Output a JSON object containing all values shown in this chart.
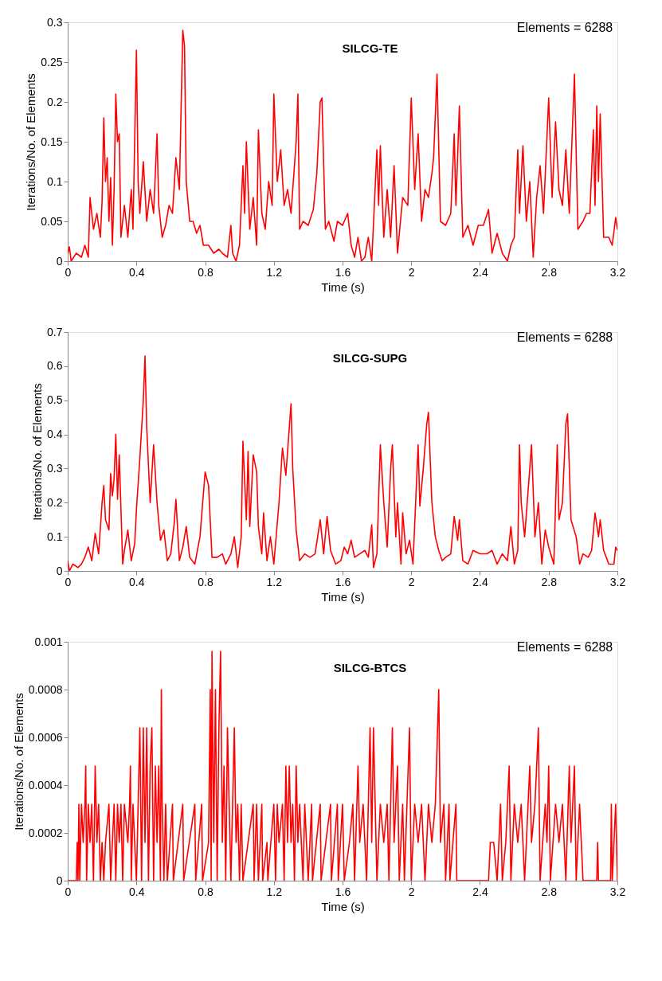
{
  "chart_data": [
    {
      "type": "line",
      "title": "SILCG-TE",
      "xlabel": "Time (s)",
      "ylabel": "Iterations/No. of Elements",
      "annotations": [
        "Elements = 6288"
      ],
      "xlim": [
        0,
        3.2
      ],
      "xticks": [
        0,
        0.4,
        0.8,
        1.2,
        1.6,
        2,
        2.4,
        2.8,
        3.2
      ],
      "ylim": [
        0,
        0.3
      ],
      "yticks": [
        0,
        0.05,
        0.1,
        0.15,
        0.2,
        0.25,
        0.3
      ],
      "grid": false,
      "marker": "none",
      "line_style": "solid",
      "series": [
        {
          "color": "#ff0000",
          "x": [
            0,
            0.01,
            0.02,
            0.05,
            0.08,
            0.1,
            0.12,
            0.13,
            0.15,
            0.17,
            0.19,
            0.2,
            0.21,
            0.22,
            0.23,
            0.24,
            0.25,
            0.26,
            0.27,
            0.28,
            0.29,
            0.3,
            0.31,
            0.33,
            0.35,
            0.37,
            0.38,
            0.4,
            0.41,
            0.42,
            0.44,
            0.46,
            0.48,
            0.5,
            0.52,
            0.53,
            0.55,
            0.57,
            0.59,
            0.61,
            0.63,
            0.65,
            0.67,
            0.68,
            0.69,
            0.71,
            0.73,
            0.75,
            0.77,
            0.79,
            0.82,
            0.85,
            0.88,
            0.9,
            0.93,
            0.95,
            0.96,
            0.98,
            1.0,
            1.02,
            1.03,
            1.04,
            1.06,
            1.08,
            1.1,
            1.11,
            1.13,
            1.15,
            1.17,
            1.19,
            1.2,
            1.22,
            1.24,
            1.26,
            1.28,
            1.3,
            1.33,
            1.34,
            1.35,
            1.37,
            1.4,
            1.43,
            1.45,
            1.47,
            1.48,
            1.5,
            1.52,
            1.55,
            1.57,
            1.6,
            1.63,
            1.65,
            1.67,
            1.69,
            1.71,
            1.73,
            1.75,
            1.77,
            1.8,
            1.81,
            1.82,
            1.84,
            1.86,
            1.88,
            1.9,
            1.92,
            1.95,
            1.98,
            2.0,
            2.02,
            2.04,
            2.06,
            2.08,
            2.1,
            2.12,
            2.13,
            2.15,
            2.17,
            2.2,
            2.23,
            2.25,
            2.26,
            2.28,
            2.3,
            2.33,
            2.36,
            2.39,
            2.42,
            2.45,
            2.47,
            2.5,
            2.53,
            2.56,
            2.58,
            2.6,
            2.62,
            2.63,
            2.65,
            2.67,
            2.69,
            2.71,
            2.73,
            2.75,
            2.77,
            2.8,
            2.82,
            2.84,
            2.86,
            2.88,
            2.9,
            2.92,
            2.95,
            2.97,
            3.0,
            3.02,
            3.04,
            3.06,
            3.07,
            3.08,
            3.09,
            3.1,
            3.12,
            3.15,
            3.17,
            3.19,
            3.2
          ],
          "values": [
            0.01,
            0.018,
            0.0,
            0.01,
            0.005,
            0.02,
            0.005,
            0.08,
            0.04,
            0.06,
            0.03,
            0.075,
            0.18,
            0.1,
            0.13,
            0.05,
            0.105,
            0.02,
            0.09,
            0.21,
            0.15,
            0.16,
            0.03,
            0.07,
            0.03,
            0.09,
            0.04,
            0.265,
            0.1,
            0.06,
            0.125,
            0.05,
            0.09,
            0.06,
            0.16,
            0.07,
            0.03,
            0.045,
            0.07,
            0.06,
            0.13,
            0.09,
            0.29,
            0.27,
            0.1,
            0.05,
            0.05,
            0.035,
            0.045,
            0.02,
            0.02,
            0.01,
            0.015,
            0.01,
            0.005,
            0.045,
            0.01,
            0.0,
            0.02,
            0.12,
            0.06,
            0.15,
            0.04,
            0.08,
            0.02,
            0.165,
            0.06,
            0.04,
            0.1,
            0.07,
            0.21,
            0.1,
            0.14,
            0.07,
            0.09,
            0.06,
            0.15,
            0.21,
            0.04,
            0.05,
            0.045,
            0.065,
            0.11,
            0.2,
            0.205,
            0.04,
            0.05,
            0.025,
            0.05,
            0.045,
            0.06,
            0.02,
            0.005,
            0.03,
            0.0,
            0.005,
            0.03,
            0.0,
            0.14,
            0.07,
            0.145,
            0.03,
            0.09,
            0.03,
            0.12,
            0.01,
            0.08,
            0.07,
            0.205,
            0.09,
            0.16,
            0.05,
            0.09,
            0.08,
            0.11,
            0.13,
            0.235,
            0.05,
            0.045,
            0.06,
            0.16,
            0.07,
            0.195,
            0.03,
            0.045,
            0.02,
            0.045,
            0.045,
            0.065,
            0.01,
            0.035,
            0.01,
            0.0,
            0.02,
            0.03,
            0.14,
            0.06,
            0.145,
            0.05,
            0.1,
            0.005,
            0.08,
            0.12,
            0.06,
            0.205,
            0.08,
            0.175,
            0.09,
            0.07,
            0.14,
            0.06,
            0.235,
            0.04,
            0.05,
            0.06,
            0.06,
            0.165,
            0.07,
            0.195,
            0.1,
            0.185,
            0.03,
            0.03,
            0.02,
            0.055,
            0.04
          ]
        }
      ]
    },
    {
      "type": "line",
      "title": "SILCG-SUPG",
      "xlabel": "Time (s)",
      "ylabel": "Iterations/No. of Elements",
      "annotations": [
        "Elements = 6288"
      ],
      "xlim": [
        0,
        3.2
      ],
      "xticks": [
        0,
        0.4,
        0.8,
        1.2,
        1.6,
        2,
        2.4,
        2.8,
        3.2
      ],
      "ylim": [
        0,
        0.7
      ],
      "yticks": [
        0,
        0.1,
        0.2,
        0.3,
        0.4,
        0.5,
        0.6,
        0.7
      ],
      "grid": false,
      "marker": "none",
      "line_style": "solid",
      "series": [
        {
          "color": "#ff0000",
          "x": [
            0,
            0.01,
            0.03,
            0.06,
            0.08,
            0.1,
            0.12,
            0.14,
            0.16,
            0.18,
            0.2,
            0.21,
            0.22,
            0.24,
            0.25,
            0.26,
            0.27,
            0.28,
            0.29,
            0.3,
            0.32,
            0.33,
            0.35,
            0.37,
            0.39,
            0.4,
            0.42,
            0.44,
            0.45,
            0.46,
            0.48,
            0.5,
            0.52,
            0.54,
            0.56,
            0.58,
            0.6,
            0.62,
            0.63,
            0.65,
            0.67,
            0.69,
            0.71,
            0.74,
            0.77,
            0.8,
            0.82,
            0.84,
            0.87,
            0.9,
            0.92,
            0.95,
            0.97,
            0.99,
            1.01,
            1.02,
            1.04,
            1.05,
            1.06,
            1.08,
            1.1,
            1.11,
            1.13,
            1.14,
            1.16,
            1.18,
            1.2,
            1.23,
            1.25,
            1.27,
            1.3,
            1.31,
            1.33,
            1.35,
            1.38,
            1.41,
            1.44,
            1.47,
            1.49,
            1.51,
            1.53,
            1.56,
            1.59,
            1.61,
            1.63,
            1.65,
            1.67,
            1.7,
            1.73,
            1.75,
            1.77,
            1.78,
            1.8,
            1.82,
            1.84,
            1.86,
            1.88,
            1.89,
            1.91,
            1.92,
            1.94,
            1.95,
            1.97,
            1.99,
            2.01,
            2.04,
            2.05,
            2.07,
            2.09,
            2.1,
            2.12,
            2.14,
            2.16,
            2.18,
            2.2,
            2.23,
            2.25,
            2.27,
            2.28,
            2.3,
            2.33,
            2.36,
            2.4,
            2.44,
            2.47,
            2.5,
            2.53,
            2.56,
            2.58,
            2.6,
            2.62,
            2.63,
            2.64,
            2.66,
            2.69,
            2.7,
            2.72,
            2.74,
            2.76,
            2.78,
            2.8,
            2.83,
            2.85,
            2.86,
            2.88,
            2.9,
            2.91,
            2.93,
            2.96,
            2.98,
            3.0,
            3.03,
            3.05,
            3.07,
            3.09,
            3.1,
            3.12,
            3.15,
            3.18,
            3.19,
            3.2
          ],
          "values": [
            0.03,
            0.0,
            0.02,
            0.01,
            0.02,
            0.04,
            0.07,
            0.03,
            0.11,
            0.05,
            0.2,
            0.25,
            0.15,
            0.12,
            0.285,
            0.22,
            0.27,
            0.4,
            0.21,
            0.34,
            0.02,
            0.06,
            0.12,
            0.03,
            0.08,
            0.18,
            0.33,
            0.5,
            0.63,
            0.42,
            0.2,
            0.37,
            0.2,
            0.09,
            0.12,
            0.03,
            0.05,
            0.14,
            0.21,
            0.03,
            0.07,
            0.13,
            0.04,
            0.02,
            0.1,
            0.29,
            0.25,
            0.04,
            0.04,
            0.05,
            0.02,
            0.05,
            0.1,
            0.01,
            0.1,
            0.38,
            0.15,
            0.35,
            0.13,
            0.34,
            0.29,
            0.13,
            0.05,
            0.17,
            0.03,
            0.1,
            0.02,
            0.2,
            0.36,
            0.28,
            0.49,
            0.3,
            0.12,
            0.03,
            0.05,
            0.04,
            0.05,
            0.15,
            0.05,
            0.16,
            0.06,
            0.02,
            0.03,
            0.07,
            0.05,
            0.09,
            0.04,
            0.05,
            0.06,
            0.04,
            0.135,
            0.01,
            0.05,
            0.37,
            0.2,
            0.07,
            0.3,
            0.37,
            0.1,
            0.2,
            0.02,
            0.17,
            0.05,
            0.09,
            0.02,
            0.37,
            0.19,
            0.3,
            0.43,
            0.465,
            0.2,
            0.1,
            0.06,
            0.03,
            0.04,
            0.05,
            0.16,
            0.09,
            0.15,
            0.03,
            0.02,
            0.06,
            0.05,
            0.05,
            0.06,
            0.02,
            0.05,
            0.03,
            0.13,
            0.02,
            0.06,
            0.37,
            0.2,
            0.1,
            0.3,
            0.37,
            0.1,
            0.2,
            0.02,
            0.12,
            0.07,
            0.02,
            0.37,
            0.15,
            0.2,
            0.43,
            0.46,
            0.15,
            0.1,
            0.02,
            0.05,
            0.04,
            0.06,
            0.17,
            0.1,
            0.15,
            0.06,
            0.02,
            0.02,
            0.07,
            0.06
          ]
        }
      ]
    },
    {
      "type": "line",
      "title": "SILCG-BTCS",
      "xlabel": "Time (s)",
      "ylabel": "Iterations/No. of Elements",
      "annotations": [
        "Elements = 6288"
      ],
      "xlim": [
        0,
        3.2
      ],
      "xticks": [
        0,
        0.4,
        0.8,
        1.2,
        1.6,
        2,
        2.4,
        2.8,
        3.2
      ],
      "ylim": [
        0,
        0.001
      ],
      "yticks": [
        0,
        0.0002,
        0.0004,
        0.0006,
        0.0008,
        0.001
      ],
      "grid": false,
      "marker": "none",
      "line_style": "solid",
      "series": [
        {
          "color": "#ff0000",
          "x": [
            0,
            0.05,
            0.055,
            0.06,
            0.065,
            0.07,
            0.08,
            0.09,
            0.1,
            0.105,
            0.11,
            0.12,
            0.13,
            0.14,
            0.15,
            0.16,
            0.17,
            0.18,
            0.19,
            0.2,
            0.21,
            0.22,
            0.24,
            0.25,
            0.27,
            0.28,
            0.29,
            0.3,
            0.31,
            0.32,
            0.33,
            0.35,
            0.36,
            0.365,
            0.37,
            0.38,
            0.39,
            0.4,
            0.42,
            0.43,
            0.44,
            0.45,
            0.46,
            0.47,
            0.48,
            0.49,
            0.5,
            0.51,
            0.52,
            0.53,
            0.54,
            0.545,
            0.55,
            0.56,
            0.57,
            0.58,
            0.61,
            0.615,
            0.67,
            0.675,
            0.74,
            0.745,
            0.78,
            0.785,
            0.82,
            0.83,
            0.835,
            0.84,
            0.85,
            0.86,
            0.87,
            0.88,
            0.89,
            0.9,
            0.91,
            0.92,
            0.93,
            0.94,
            0.95,
            0.96,
            0.97,
            0.98,
            0.99,
            1.0,
            1.01,
            1.02,
            1.08,
            1.085,
            1.1,
            1.11,
            1.13,
            1.135,
            1.16,
            1.165,
            1.2,
            1.21,
            1.22,
            1.23,
            1.25,
            1.26,
            1.27,
            1.28,
            1.29,
            1.3,
            1.31,
            1.32,
            1.33,
            1.34,
            1.35,
            1.37,
            1.38,
            1.39,
            1.4,
            1.42,
            1.425,
            1.47,
            1.475,
            1.53,
            1.535,
            1.57,
            1.575,
            1.6,
            1.61,
            1.64,
            1.66,
            1.67,
            1.69,
            1.7,
            1.72,
            1.74,
            1.76,
            1.77,
            1.78,
            1.79,
            1.8,
            1.82,
            1.84,
            1.86,
            1.87,
            1.89,
            1.9,
            1.92,
            1.93,
            1.95,
            1.96,
            1.99,
            2.0,
            2.02,
            2.04,
            2.06,
            2.08,
            2.1,
            2.12,
            2.14,
            2.16,
            2.17,
            2.19,
            2.2,
            2.22,
            2.225,
            2.26,
            2.265,
            2.45,
            2.46,
            2.48,
            2.5,
            2.52,
            2.53,
            2.55,
            2.57,
            2.58,
            2.6,
            2.62,
            2.64,
            2.66,
            2.69,
            2.7,
            2.72,
            2.74,
            2.75,
            2.78,
            2.79,
            2.8,
            2.81,
            2.84,
            2.86,
            2.88,
            2.9,
            2.92,
            2.93,
            2.95,
            2.96,
            2.98,
            2.99,
            3.0,
            3.08,
            3.085,
            3.09,
            3.16,
            3.165,
            3.17,
            3.19,
            3.2
          ],
          "values": [
            0,
            0,
            0.00016,
            0,
            0.00032,
            0,
            0.00032,
            0.00016,
            0.00032,
            0.00048,
            0,
            0.00032,
            0.00016,
            0.00032,
            0,
            0.00048,
            0.00016,
            0.00032,
            0,
            0.00016,
            0,
            0.00016,
            0.00032,
            0,
            0.00032,
            0,
            0.00032,
            0.00016,
            0.00032,
            0,
            0.00032,
            0.00016,
            0.00032,
            0.00048,
            0,
            0.00032,
            0.00016,
            0,
            0.00064,
            0,
            0.00064,
            0.00016,
            0.00064,
            0,
            0.00048,
            0.00064,
            0,
            0.00048,
            0.00016,
            0.00048,
            0,
            0.0008,
            0.00032,
            0,
            0.00032,
            0,
            0.00032,
            0,
            0.00032,
            0,
            0.00032,
            0,
            0.00032,
            0,
            0.00016,
            0.0008,
            0,
            0.00096,
            0.00016,
            0.0008,
            0,
            0.00064,
            0.00096,
            0.00016,
            0.00048,
            0,
            0.00064,
            0.00032,
            0,
            0.00032,
            0.00064,
            0.00016,
            0.00032,
            0,
            0.00032,
            0,
            0.00032,
            0,
            0.00032,
            0,
            0.00032,
            0,
            0.00016,
            0,
            0.00032,
            0,
            0.00032,
            0.00016,
            0.00032,
            0,
            0.00048,
            0.00016,
            0.00048,
            0.00016,
            0.00032,
            0,
            0.00048,
            0.00016,
            0.00032,
            0,
            0.00032,
            0.00016,
            0,
            0.00032,
            0,
            0.00032,
            0,
            0.00032,
            0,
            0.00032,
            0,
            0.00032,
            0,
            0.00016,
            0.00032,
            0,
            0.00048,
            0.00016,
            0.00032,
            0,
            0.00064,
            0.00016,
            0.00064,
            0.00032,
            0,
            0.00032,
            0.00016,
            0.00032,
            0,
            0.00064,
            0.00016,
            0.00048,
            0,
            0.00032,
            0,
            0.00064,
            0,
            0.00032,
            0.00016,
            0.00032,
            0,
            0.00032,
            0.00016,
            0.00032,
            0.0008,
            0.00016,
            0.00032,
            0,
            0.00032,
            0,
            0.00032,
            0,
            0,
            0.00016,
            0.00016,
            0,
            0.00032,
            0,
            0.00016,
            0.00048,
            0,
            0.00032,
            0.00016,
            0.00032,
            0,
            0.00048,
            0.00016,
            0.00032,
            0.00064,
            0,
            0.00032,
            0.00016,
            0.00048,
            0,
            0.00032,
            0.00016,
            0.00032,
            0,
            0.00048,
            0.00016,
            0.00048,
            0,
            0.00032,
            0.00016,
            0,
            0,
            0.00016,
            0,
            0,
            0.00032,
            0,
            0.00032,
            0
          ]
        }
      ]
    }
  ]
}
